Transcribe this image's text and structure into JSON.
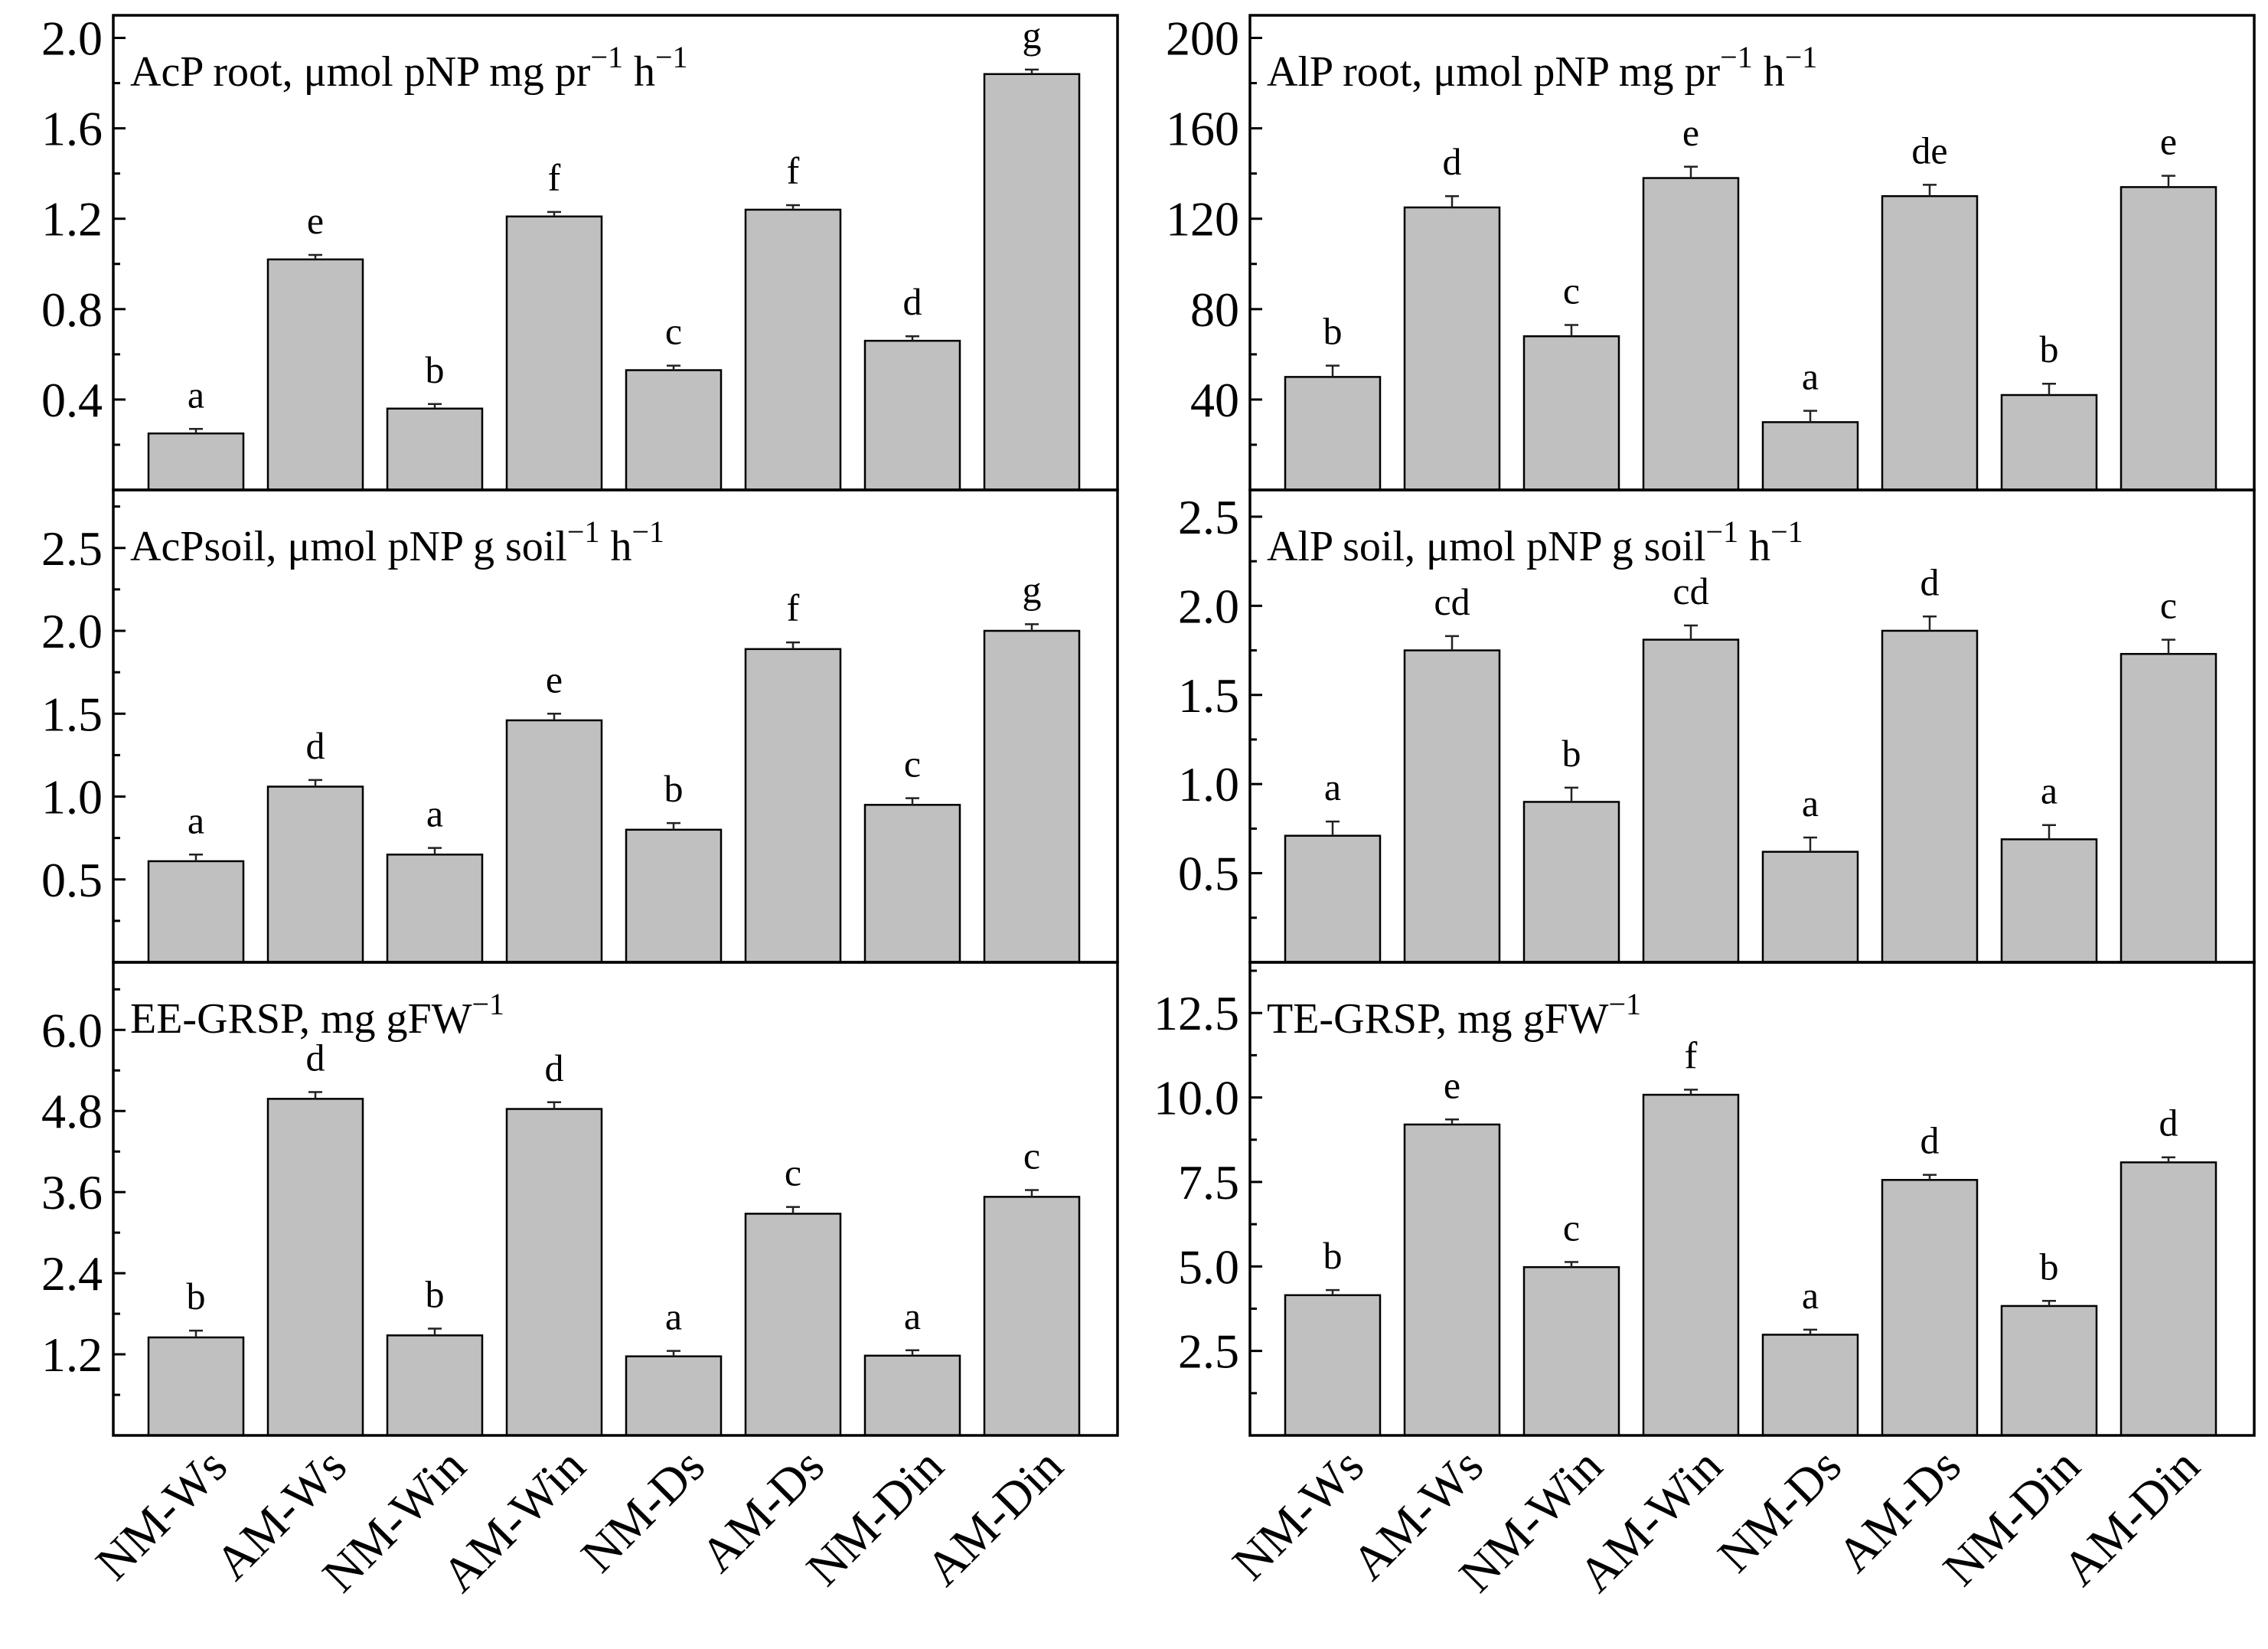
{
  "chart_data": [
    {
      "type": "bar",
      "title": "AcP root, μmol pNP mg pr",
      "title_sup": "−1",
      "title_tail": " h",
      "title_tail_sup": "−1",
      "categories": [
        "NM-Ws",
        "AM-Ws",
        "NM-Win",
        "AM-Win",
        "NM-Ds",
        "AM-Ds",
        "NM-Din",
        "AM-Din"
      ],
      "values": [
        0.25,
        1.02,
        0.36,
        1.21,
        0.53,
        1.24,
        0.66,
        1.84
      ],
      "errors": [
        0.02,
        0.02,
        0.02,
        0.02,
        0.02,
        0.02,
        0.02,
        0.02
      ],
      "letters": [
        "a",
        "e",
        "b",
        "f",
        "c",
        "f",
        "d",
        "g"
      ],
      "ylim": [
        0,
        2.1
      ],
      "yticks": [
        0.4,
        0.8,
        1.2,
        1.6,
        2.0
      ],
      "ytick_labels": [
        "0.4",
        "0.8",
        "1.2",
        "1.6",
        "2.0"
      ],
      "minor_ticks": [
        0.2,
        0.6,
        1.0,
        1.4,
        1.8
      ]
    },
    {
      "type": "bar",
      "title": "AlP root, μmol pNP mg pr",
      "title_sup": "−1",
      "title_tail": " h",
      "title_tail_sup": "−1",
      "categories": [
        "NM-Ws",
        "AM-Ws",
        "NM-Win",
        "AM-Win",
        "NM-Ds",
        "AM-Ds",
        "NM-Din",
        "AM-Din"
      ],
      "values": [
        50,
        125,
        68,
        138,
        30,
        130,
        42,
        134
      ],
      "errors": [
        5,
        5,
        5,
        5,
        5,
        5,
        5,
        5
      ],
      "letters": [
        "b",
        "d",
        "c",
        "e",
        "a",
        "de",
        "b",
        "e"
      ],
      "ylim": [
        0,
        210
      ],
      "yticks": [
        40,
        80,
        120,
        160,
        200
      ],
      "ytick_labels": [
        "40",
        "80",
        "120",
        "160",
        "200"
      ],
      "minor_ticks": [
        20,
        60,
        100,
        140,
        180
      ]
    },
    {
      "type": "bar",
      "title": "AcPsoil, μmol pNP g soil",
      "title_sup": "−1",
      "title_tail": " h",
      "title_tail_sup": "−1",
      "categories": [
        "NM-Ws",
        "AM-Ws",
        "NM-Win",
        "AM-Win",
        "NM-Ds",
        "AM-Ds",
        "NM-Din",
        "AM-Din"
      ],
      "values": [
        0.61,
        1.06,
        0.65,
        1.46,
        0.8,
        1.89,
        0.95,
        2.0
      ],
      "errors": [
        0.04,
        0.04,
        0.04,
        0.04,
        0.04,
        0.04,
        0.04,
        0.04
      ],
      "letters": [
        "a",
        "d",
        "a",
        "e",
        "b",
        "f",
        "c",
        "g"
      ],
      "ylim": [
        0,
        2.85
      ],
      "yticks": [
        0.5,
        1.0,
        1.5,
        2.0,
        2.5
      ],
      "ytick_labels": [
        "0.5",
        "1.0",
        "1.5",
        "2.0",
        "2.5"
      ],
      "minor_ticks": [
        0.25,
        0.75,
        1.25,
        1.75,
        2.25,
        2.75
      ]
    },
    {
      "type": "bar",
      "title": "AlP soil, μmol pNP g soil",
      "title_sup": "−1",
      "title_tail": " h",
      "title_tail_sup": "−1",
      "categories": [
        "NM-Ws",
        "AM-Ws",
        "NM-Win",
        "AM-Win",
        "NM-Ds",
        "AM-Ds",
        "NM-Din",
        "AM-Din"
      ],
      "values": [
        0.71,
        1.75,
        0.9,
        1.81,
        0.62,
        1.86,
        0.69,
        1.73
      ],
      "errors": [
        0.08,
        0.08,
        0.08,
        0.08,
        0.08,
        0.08,
        0.08,
        0.08
      ],
      "letters": [
        "a",
        "cd",
        "b",
        "cd",
        "a",
        "d",
        "a",
        "c"
      ],
      "ylim": [
        0,
        2.65
      ],
      "yticks": [
        0.5,
        1.0,
        1.5,
        2.0,
        2.5
      ],
      "ytick_labels": [
        "0.5",
        "1.0",
        "1.5",
        "2.0",
        "2.5"
      ],
      "minor_ticks": [
        0.25,
        0.75,
        1.25,
        1.75,
        2.25
      ]
    },
    {
      "type": "bar",
      "title": "EE-GRSP, mg gFW",
      "title_sup": "−1",
      "title_tail": "",
      "title_tail_sup": "",
      "categories": [
        "NM-Ws",
        "AM-Ws",
        "NM-Win",
        "AM-Win",
        "NM-Ds",
        "AM-Ds",
        "NM-Din",
        "AM-Din"
      ],
      "values": [
        1.45,
        4.98,
        1.48,
        4.83,
        1.17,
        3.28,
        1.18,
        3.53
      ],
      "errors": [
        0.1,
        0.1,
        0.1,
        0.1,
        0.08,
        0.1,
        0.08,
        0.1
      ],
      "letters": [
        "b",
        "d",
        "b",
        "d",
        "a",
        "c",
        "a",
        "c"
      ],
      "ylim": [
        0,
        7.0
      ],
      "yticks": [
        1.2,
        2.4,
        3.6,
        4.8,
        6.0
      ],
      "ytick_labels": [
        "1.2",
        "2.4",
        "3.6",
        "4.8",
        "6.0"
      ],
      "minor_ticks": [
        0.6,
        1.8,
        3.0,
        4.2,
        5.4,
        6.6
      ]
    },
    {
      "type": "bar",
      "title": "TE-GRSP, mg gFW",
      "title_sup": "−1",
      "title_tail": "",
      "title_tail_sup": "",
      "categories": [
        "NM-Ws",
        "AM-Ws",
        "NM-Win",
        "AM-Win",
        "NM-Ds",
        "AM-Ds",
        "NM-Din",
        "AM-Din"
      ],
      "values": [
        4.15,
        9.2,
        4.98,
        10.08,
        2.98,
        7.56,
        3.83,
        8.08
      ],
      "errors": [
        0.15,
        0.15,
        0.15,
        0.15,
        0.15,
        0.15,
        0.15,
        0.15
      ],
      "letters": [
        "b",
        "e",
        "c",
        "f",
        "a",
        "d",
        "b",
        "d"
      ],
      "ylim": [
        0,
        14.0
      ],
      "yticks": [
        2.5,
        5.0,
        7.5,
        10.0,
        12.5
      ],
      "ytick_labels": [
        "2.5",
        "5.0",
        "7.5",
        "10.0",
        "12.5"
      ],
      "minor_ticks": [
        1.25,
        3.75,
        6.25,
        8.75,
        11.25,
        13.75
      ]
    }
  ],
  "style": {
    "bar_color": "#c0c0c0",
    "bar_edge": "#000000",
    "background": "#ffffff"
  }
}
